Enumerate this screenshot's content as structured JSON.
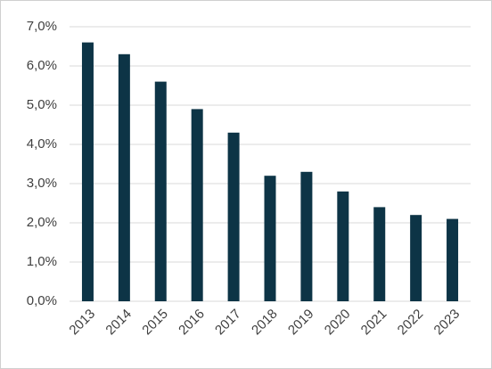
{
  "chart_data": {
    "type": "bar",
    "categories": [
      "2013",
      "2014",
      "2015",
      "2016",
      "2017",
      "2018",
      "2019",
      "2020",
      "2021",
      "2022",
      "2023"
    ],
    "values": [
      6.6,
      6.3,
      5.6,
      4.9,
      4.3,
      3.2,
      3.3,
      2.8,
      2.4,
      2.2,
      2.1
    ],
    "color": "#0d3446",
    "ylim": [
      0,
      7
    ],
    "yticks": [
      {
        "value": 0,
        "label": "0,0%"
      },
      {
        "value": 1,
        "label": "1,0%"
      },
      {
        "value": 2,
        "label": "2,0%"
      },
      {
        "value": 3,
        "label": "3,0%"
      },
      {
        "value": 4,
        "label": "4,0%"
      },
      {
        "value": 5,
        "label": "5,0%"
      },
      {
        "value": 6,
        "label": "6,0%"
      },
      {
        "value": 7,
        "label": "7,0%"
      }
    ],
    "grid": true
  }
}
